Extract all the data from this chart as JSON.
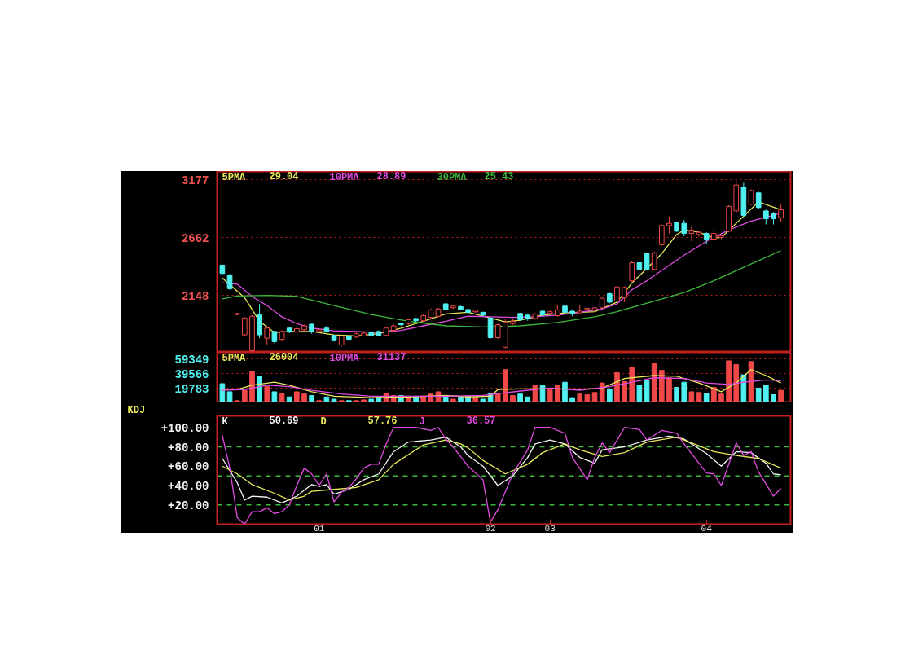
{
  "chart_data": [
    {
      "type": "candlestick",
      "categories": [
        null,
        null,
        null,
        null,
        null,
        null,
        null,
        null,
        null,
        null,
        null,
        null,
        null,
        null,
        null,
        null,
        null,
        null,
        null,
        null,
        null,
        null,
        null,
        null,
        null,
        null,
        null,
        null,
        null,
        null,
        null,
        null,
        null,
        null,
        null,
        null,
        null,
        null,
        null,
        null,
        null,
        null,
        null,
        null,
        null,
        null,
        null,
        null,
        null,
        null,
        null,
        null,
        null,
        null,
        null,
        null,
        null,
        null,
        null,
        null,
        null,
        null,
        null,
        null,
        null,
        null,
        null,
        null,
        null,
        null,
        null,
        null,
        null,
        null,
        null,
        null
      ],
      "ohlc": [
        [
          2419,
          2425,
          2340,
          2344
        ],
        [
          2330,
          2340,
          2200,
          2210
        ],
        [
          1980,
          1992,
          1978,
          1990
        ],
        [
          1800,
          1955,
          1790,
          1950
        ],
        [
          1660,
          1975,
          1647,
          1965
        ],
        [
          1980,
          2075,
          1770,
          1800
        ],
        [
          1770,
          1870,
          1715,
          1860
        ],
        [
          1830,
          1835,
          1725,
          1740
        ],
        [
          1760,
          1840,
          1748,
          1830
        ],
        [
          1860,
          1866,
          1815,
          1830
        ],
        [
          1825,
          1866,
          1815,
          1855
        ],
        [
          1845,
          1890,
          1838,
          1880
        ],
        [
          1895,
          1898,
          1810,
          1825
        ],
        [
          1830,
          1850,
          1822,
          1845
        ],
        [
          1860,
          1880,
          1820,
          1830
        ],
        [
          1795,
          1800,
          1741,
          1755
        ],
        [
          1710,
          1796,
          1694,
          1790
        ],
        [
          1790,
          1795,
          1755,
          1760
        ],
        [
          1780,
          1820,
          1775,
          1810
        ],
        [
          1790,
          1825,
          1785,
          1815
        ],
        [
          1825,
          1835,
          1790,
          1795
        ],
        [
          1830,
          1840,
          1785,
          1795
        ],
        [
          1795,
          1870,
          1785,
          1860
        ],
        [
          1840,
          1890,
          1830,
          1880
        ],
        [
          1905,
          1910,
          1880,
          1890
        ],
        [
          1900,
          1945,
          1890,
          1935
        ],
        [
          1945,
          1950,
          1915,
          1925
        ],
        [
          1925,
          1980,
          1915,
          1970
        ],
        [
          1955,
          2035,
          1940,
          2020
        ],
        [
          1965,
          2040,
          1955,
          2030
        ],
        [
          2075,
          2080,
          2020,
          2025
        ],
        [
          2040,
          2065,
          2030,
          2055
        ],
        [
          2050,
          2060,
          2020,
          2025
        ],
        [
          2025,
          2030,
          1990,
          2000
        ],
        [
          2005,
          2025,
          1995,
          2020
        ],
        [
          2000,
          2005,
          1965,
          1975
        ],
        [
          1950,
          1955,
          1765,
          1775
        ],
        [
          1775,
          1900,
          1765,
          1890
        ],
        [
          1690,
          1940,
          1680,
          1910
        ],
        [
          1900,
          1945,
          1890,
          1920
        ],
        [
          1990,
          1995,
          1925,
          1935
        ],
        [
          1975,
          1990,
          1925,
          1945
        ],
        [
          1945,
          1995,
          1935,
          1985
        ],
        [
          2010,
          2020,
          1965,
          1975
        ],
        [
          1990,
          2020,
          1980,
          2005
        ],
        [
          1970,
          2070,
          1960,
          2020
        ],
        [
          2055,
          2075,
          1990,
          2000
        ],
        [
          2010,
          2020,
          1965,
          1990
        ],
        [
          1995,
          2065,
          1985,
          2010
        ],
        [
          2025,
          2040,
          2015,
          2035
        ],
        [
          2020,
          2045,
          2015,
          2040
        ],
        [
          2040,
          2130,
          2035,
          2125
        ],
        [
          2165,
          2175,
          2080,
          2090
        ],
        [
          2100,
          2235,
          2095,
          2225
        ],
        [
          2130,
          2230,
          2090,
          2220
        ],
        [
          2280,
          2455,
          2270,
          2440
        ],
        [
          2440,
          2445,
          2375,
          2380
        ],
        [
          2525,
          2530,
          2370,
          2380
        ],
        [
          2380,
          2540,
          2370,
          2525
        ],
        [
          2600,
          2780,
          2590,
          2770
        ],
        [
          2770,
          2852,
          2700,
          2790
        ],
        [
          2800,
          2805,
          2715,
          2720
        ],
        [
          2790,
          2820,
          2675,
          2700
        ],
        [
          2700,
          2760,
          2630,
          2730
        ],
        [
          2690,
          2720,
          2670,
          2710
        ],
        [
          2700,
          2710,
          2610,
          2650
        ],
        [
          2650,
          2745,
          2630,
          2700
        ],
        [
          2665,
          2690,
          2650,
          2680
        ],
        [
          2720,
          2950,
          2710,
          2940
        ],
        [
          2900,
          3177,
          2886,
          3130
        ],
        [
          3110,
          3150,
          2845,
          2860
        ],
        [
          2960,
          3090,
          2950,
          3080
        ],
        [
          3060,
          3070,
          2920,
          2930
        ],
        [
          2900,
          2910,
          2780,
          2830
        ],
        [
          2880,
          2890,
          2780,
          2830
        ],
        [
          2840,
          2960,
          2800,
          2910
        ]
      ],
      "colors": [
        "#50f0f0",
        "#50f0f0",
        "#f04848",
        "#f04848",
        "#f04848",
        "#50f0f0",
        "#f04848",
        "#50f0f0",
        "#f04848",
        "#50f0f0",
        "#f04848",
        "#f04848",
        "#50f0f0",
        "#f04848",
        "#50f0f0",
        "#50f0f0",
        "#f04848",
        "#50f0f0",
        "#f04848",
        "#f04848",
        "#50f0f0",
        "#50f0f0",
        "#f04848",
        "#f04848",
        "#50f0f0",
        "#f04848",
        "#50f0f0",
        "#f04848",
        "#f04848",
        "#f04848",
        "#50f0f0",
        "#f04848",
        "#50f0f0",
        "#50f0f0",
        "#f04848",
        "#50f0f0",
        "#50f0f0",
        "#f04848",
        "#f04848",
        "#f04848",
        "#50f0f0",
        "#50f0f0",
        "#f04848",
        "#50f0f0",
        "#f04848",
        "#f04848",
        "#50f0f0",
        "#50f0f0",
        "#f04848",
        "#f04848",
        "#f04848",
        "#f04848",
        "#50f0f0",
        "#f04848",
        "#f04848",
        "#f04848",
        "#50f0f0",
        "#50f0f0",
        "#f04848",
        "#f04848",
        "#f04848",
        "#50f0f0",
        "#50f0f0",
        "#f04848",
        "#f04848",
        "#50f0f0",
        "#f04848",
        "#f04848",
        "#f04848",
        "#f04848",
        "#50f0f0",
        "#f04848",
        "#50f0f0",
        "#50f0f0",
        "#50f0f0",
        "#f04848"
      ],
      "series": [
        {
          "type": "line",
          "name": "5PMA",
          "color": "#e8e85a",
          "values": [
            2305,
            null,
            null,
            2130,
            null,
            1920,
            null,
            1820,
            null,
            1830,
            null,
            null,
            1830,
            null,
            null,
            1800,
            null,
            null,
            1790,
            null,
            null,
            1810,
            null,
            null,
            1860,
            null,
            null,
            1920,
            null,
            null,
            1985,
            null,
            null,
            2000,
            null,
            null,
            1950,
            null,
            1915,
            null,
            1930,
            null,
            null,
            1975,
            null,
            null,
            1995,
            null,
            null,
            null,
            2005,
            null,
            null,
            2090,
            null,
            2260,
            null,
            2390,
            null,
            2520,
            null,
            2690,
            2730,
            null,
            2710,
            null,
            2660,
            2665,
            null,
            2790,
            null,
            null,
            2980,
            null,
            null,
            2910
          ]
        },
        {
          "type": "line",
          "name": "10PMA",
          "color": "#e04ce0",
          "values": [
            2262,
            null,
            2250,
            null,
            2140,
            null,
            2060,
            null,
            1960,
            null,
            1900,
            null,
            1860,
            null,
            null,
            1835,
            null,
            null,
            1830,
            null,
            null,
            1820,
            null,
            null,
            1840,
            null,
            null,
            1880,
            null,
            null,
            1920,
            null,
            null,
            1965,
            null,
            null,
            1960,
            null,
            null,
            1955,
            null,
            null,
            1960,
            null,
            null,
            1975,
            null,
            null,
            2000,
            null,
            null,
            2030,
            null,
            2075,
            null,
            2200,
            null,
            2280,
            null,
            2371,
            null,
            null,
            2507,
            null,
            null,
            2630,
            null,
            null,
            2730,
            null,
            null,
            2810,
            null,
            null,
            null,
            2879
          ]
        },
        {
          "type": "line",
          "name": "30PMA",
          "color": "#3cb83c",
          "values": [
            2120,
            null,
            2145,
            null,
            null,
            null,
            2150,
            null,
            null,
            null,
            2142,
            null,
            null,
            null,
            null,
            2060,
            null,
            null,
            null,
            null,
            1980,
            null,
            null,
            null,
            null,
            1920,
            null,
            null,
            null,
            null,
            1880,
            null,
            null,
            null,
            null,
            1870,
            null,
            null,
            null,
            null,
            1880,
            null,
            null,
            null,
            null,
            1910,
            null,
            null,
            null,
            null,
            1960,
            null,
            null,
            2006,
            null,
            null,
            null,
            null,
            2100,
            null,
            null,
            null,
            2175,
            null,
            null,
            null,
            2280,
            null,
            null,
            null,
            2400,
            null,
            null,
            null,
            null,
            2547
          ]
        }
      ],
      "annotations": [
        "29.04",
        "28.89",
        "25.43"
      ],
      "ylim": [
        1645,
        3250
      ],
      "yticks": [
        3177,
        2662,
        2148
      ],
      "grid": "y",
      "tick_labels": "y"
    },
    {
      "type": "bar",
      "categories": [
        null,
        null,
        null,
        null,
        null,
        null,
        null,
        null,
        null,
        null,
        null,
        null,
        null,
        null,
        null,
        null,
        null,
        null,
        null,
        null,
        null,
        null,
        null,
        null,
        null,
        null,
        null,
        null,
        null,
        null,
        null,
        null,
        null,
        null,
        null,
        null,
        null,
        null,
        null,
        null,
        null,
        null,
        null,
        null,
        null,
        null,
        null,
        null,
        null,
        null,
        null,
        null,
        null,
        null,
        null,
        null,
        null,
        null,
        null,
        null,
        null,
        null,
        null,
        null,
        null,
        null,
        null,
        null,
        null,
        null,
        null,
        null,
        null,
        null,
        null,
        null
      ],
      "values": [
        26000,
        15000,
        3000,
        17000,
        42000,
        36000,
        22000,
        15000,
        13000,
        8000,
        15000,
        12000,
        10000,
        3000,
        8000,
        5000,
        3000,
        3000,
        3000,
        4000,
        5000,
        8000,
        13000,
        10000,
        10000,
        9000,
        9000,
        9000,
        12000,
        15000,
        9000,
        5000,
        8000,
        9000,
        8000,
        5000,
        13000,
        13000,
        45000,
        10000,
        12000,
        8000,
        24000,
        24000,
        18000,
        24000,
        28000,
        7000,
        12000,
        11000,
        14000,
        27000,
        19000,
        41000,
        29000,
        48000,
        24000,
        30000,
        53000,
        44000,
        34000,
        21000,
        28000,
        15000,
        14000,
        13000,
        21000,
        12000,
        57000,
        52000,
        38000,
        56000,
        20000,
        24000,
        11000,
        17000
      ],
      "colors": [
        "#50f0f0",
        "#50f0f0",
        "#f04848",
        "#f04848",
        "#f04848",
        "#50f0f0",
        "#f04848",
        "#50f0f0",
        "#f04848",
        "#50f0f0",
        "#f04848",
        "#f04848",
        "#50f0f0",
        "#f04848",
        "#50f0f0",
        "#50f0f0",
        "#f04848",
        "#50f0f0",
        "#f04848",
        "#f04848",
        "#50f0f0",
        "#50f0f0",
        "#f04848",
        "#f04848",
        "#50f0f0",
        "#f04848",
        "#50f0f0",
        "#f04848",
        "#f04848",
        "#f04848",
        "#50f0f0",
        "#f04848",
        "#50f0f0",
        "#50f0f0",
        "#f04848",
        "#50f0f0",
        "#50f0f0",
        "#f04848",
        "#f04848",
        "#f04848",
        "#50f0f0",
        "#50f0f0",
        "#f04848",
        "#50f0f0",
        "#f04848",
        "#f04848",
        "#50f0f0",
        "#50f0f0",
        "#f04848",
        "#f04848",
        "#f04848",
        "#f04848",
        "#50f0f0",
        "#f04848",
        "#f04848",
        "#f04848",
        "#50f0f0",
        "#50f0f0",
        "#f04848",
        "#f04848",
        "#f04848",
        "#50f0f0",
        "#50f0f0",
        "#f04848",
        "#f04848",
        "#50f0f0",
        "#f04848",
        "#f04848",
        "#f04848",
        "#f04848",
        "#50f0f0",
        "#f04848",
        "#50f0f0",
        "#50f0f0",
        "#50f0f0",
        "#f04848"
      ],
      "series": [
        {
          "type": "line",
          "name": "5PMA",
          "color": "#e8e85a",
          "values": [
            18000,
            null,
            18000,
            null,
            24000,
            null,
            null,
            28000,
            null,
            24000,
            null,
            null,
            15000,
            null,
            null,
            9000,
            null,
            null,
            null,
            null,
            7000,
            null,
            null,
            null,
            null,
            8000,
            null,
            null,
            null,
            null,
            10000,
            null,
            null,
            8000,
            null,
            null,
            9000,
            18000,
            null,
            null,
            19000,
            null,
            19000,
            null,
            null,
            19000,
            null,
            null,
            18000,
            null,
            null,
            20000,
            null,
            null,
            33000,
            null,
            null,
            null,
            37000,
            null,
            null,
            36000,
            null,
            null,
            27000,
            null,
            null,
            15000,
            null,
            27000,
            null,
            45000,
            null,
            37000,
            null,
            27000
          ]
        },
        {
          "type": "line",
          "name": "10PMA",
          "color": "#e04ce0",
          "values": [
            17000,
            null,
            null,
            18000,
            null,
            null,
            24000,
            null,
            null,
            22000,
            null,
            null,
            17000,
            null,
            null,
            null,
            12000,
            null,
            null,
            null,
            9000,
            null,
            null,
            null,
            null,
            9000,
            null,
            null,
            null,
            null,
            9000,
            null,
            null,
            null,
            null,
            10000,
            null,
            null,
            null,
            null,
            16000,
            null,
            null,
            null,
            20000,
            null,
            null,
            null,
            17000,
            null,
            null,
            null,
            22000,
            null,
            null,
            28000,
            null,
            null,
            34000,
            null,
            null,
            null,
            33000,
            null,
            null,
            27000,
            null,
            null,
            25000,
            null,
            28000,
            null,
            null,
            31000,
            null,
            30000
          ]
        }
      ],
      "annotations": [
        "26004",
        "31137"
      ],
      "ylim": [
        0,
        68500
      ],
      "yticks": [
        59349,
        39566,
        19783
      ],
      "grid": "y",
      "tick_labels": "y"
    },
    {
      "type": "line",
      "title": "KDJ",
      "categories": [
        null,
        null,
        null,
        null,
        null,
        null,
        null,
        null,
        null,
        null,
        null,
        null,
        null,
        "01",
        null,
        null,
        null,
        null,
        null,
        null,
        null,
        null,
        null,
        null,
        null,
        null,
        null,
        null,
        null,
        null,
        null,
        null,
        null,
        null,
        null,
        null,
        "02",
        null,
        null,
        null,
        null,
        null,
        null,
        null,
        "03",
        null,
        null,
        null,
        null,
        null,
        null,
        null,
        null,
        null,
        null,
        null,
        null,
        null,
        null,
        null,
        null,
        null,
        null,
        null,
        null,
        "04",
        null,
        null,
        null,
        null,
        null,
        null,
        null,
        null,
        null,
        null
      ],
      "series": [
        {
          "name": "K",
          "color": "#f4f4f4",
          "values": [
            68,
            null,
            43,
            25,
            29,
            null,
            28,
            null,
            22,
            null,
            29,
            null,
            41,
            39,
            41,
            31,
            null,
            36,
            null,
            46,
            null,
            52,
            null,
            75,
            null,
            85,
            null,
            null,
            87,
            null,
            90,
            null,
            80,
            71,
            null,
            60,
            null,
            40,
            null,
            50,
            null,
            69,
            83,
            null,
            87,
            null,
            83,
            null,
            69,
            null,
            63,
            77,
            null,
            null,
            80,
            null,
            null,
            87,
            null,
            null,
            91,
            null,
            88,
            null,
            null,
            73,
            null,
            60,
            null,
            75,
            null,
            74,
            null,
            63,
            52,
            51
          ]
        },
        {
          "name": "D",
          "color": "#e8e85a",
          "values": [
            60,
            null,
            52,
            null,
            41,
            null,
            null,
            32,
            null,
            25,
            null,
            29,
            34,
            null,
            null,
            36,
            null,
            null,
            38,
            null,
            null,
            46,
            null,
            62,
            null,
            null,
            null,
            82,
            null,
            null,
            87,
            null,
            83,
            79,
            null,
            66,
            null,
            null,
            52,
            null,
            null,
            62,
            null,
            74,
            null,
            null,
            83,
            null,
            77,
            null,
            null,
            70,
            null,
            null,
            74,
            null,
            null,
            85,
            null,
            null,
            null,
            90,
            87,
            null,
            null,
            null,
            75,
            null,
            null,
            71,
            null,
            null,
            68,
            null,
            null,
            58
          ]
        },
        {
          "name": "J",
          "color": "#e04ce0",
          "values": [
            92,
            58,
            7,
            0,
            13,
            13,
            17,
            11,
            13,
            20,
            40,
            58,
            52,
            40,
            52,
            23,
            33,
            38,
            47,
            58,
            62,
            62,
            83,
            100,
            null,
            null,
            100,
            null,
            97,
            100,
            88,
            80,
            70,
            60,
            null,
            46,
            2,
            15,
            null,
            52,
            null,
            77,
            100,
            null,
            100,
            null,
            94,
            69,
            null,
            46,
            69,
            84,
            74,
            null,
            100,
            null,
            98,
            87,
            null,
            97,
            null,
            94,
            83,
            null,
            63,
            53,
            52,
            40,
            null,
            84,
            71,
            75,
            54,
            null,
            29,
            37
          ]
        }
      ],
      "annotations": [
        "50.69",
        "57.76",
        "36.57"
      ],
      "ylim": [
        0,
        112
      ],
      "yticks": [
        {
          "value": 100,
          "label": "+100.00"
        },
        {
          "value": 80,
          "label": "+80.00"
        },
        {
          "value": 60,
          "label": "+60.00"
        },
        {
          "value": 40,
          "label": "+40.00"
        },
        {
          "value": 20,
          "label": "+20.00"
        }
      ],
      "ref_lines": [
        {
          "axis": "y",
          "value": 80,
          "color": "#3cb83c",
          "line_style": "dashed"
        },
        {
          "axis": "y",
          "value": 50,
          "color": "#3cb83c",
          "line_style": "dashed"
        },
        {
          "axis": "y",
          "value": 20,
          "color": "#3cb83c",
          "line_style": "dashed"
        }
      ]
    }
  ]
}
